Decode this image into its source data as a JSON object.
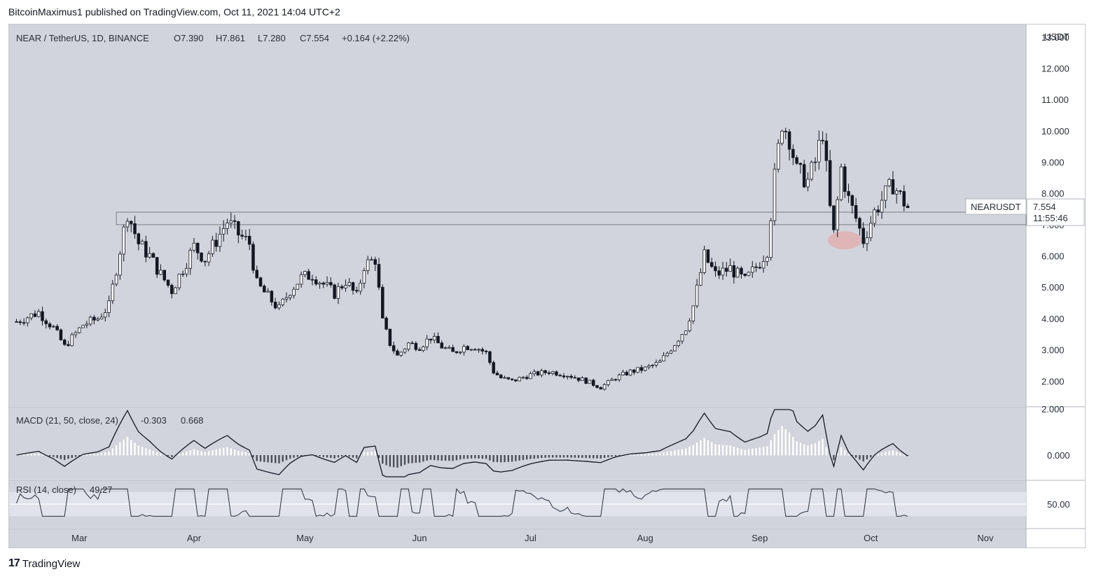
{
  "caption": "BitcoinMaximus1 published on TradingView.com, Oct 11, 2021 14:04 UTC+2",
  "brand": {
    "logo_text": "17",
    "name": "TradingView"
  },
  "legend": {
    "symbol": "NEAR / TetherUS, 1D, BINANCE",
    "o_label": "O",
    "o_value": "7.390",
    "h_label": "H",
    "h_value": "7.861",
    "l_label": "L",
    "l_value": "7.280",
    "c_label": "C",
    "c_value": "7.554",
    "change": "+0.164 (+2.22%)"
  },
  "currency": "USDT",
  "price_tag": {
    "symbol": "NEARUSDT",
    "price": "7.554",
    "countdown": "11:55:46"
  },
  "macd_legend": {
    "label": "MACD (21, 50, close, 24)",
    "v1": "-0.303",
    "v2": "0.668"
  },
  "rsi_legend": {
    "label": "RSI (14, close)",
    "value": "49.27"
  },
  "colors": {
    "pane_bg": "#d1d4dc",
    "candle_up": "#ffffff",
    "candle_down": "#131722",
    "line": "#131722",
    "highlight": "#e8a0a0",
    "rsi_band": "#e0e3eb"
  },
  "chart_data": [
    {
      "type": "candlestick",
      "title": "NEAR / TetherUS, 1D, BINANCE",
      "y_axis_ticks": [
        "2.000",
        "3.000",
        "4.000",
        "5.000",
        "6.000",
        "7.000",
        "8.000",
        "9.000",
        "10.000",
        "11.000",
        "12.000",
        "13.000"
      ],
      "x_axis_ticks": [
        "Mar",
        "Apr",
        "May",
        "Jun",
        "Jul",
        "Aug",
        "Sep",
        "Oct",
        "Nov"
      ],
      "ylim": [
        1.2,
        13.4
      ],
      "log_scale": false,
      "horizontal_range": [
        7.0,
        7.4
      ],
      "close_path": [
        [
          "2021-02-12",
          3.9
        ],
        [
          "2021-02-18",
          4.2
        ],
        [
          "2021-02-22",
          3.7
        ],
        [
          "2021-02-25",
          3.1
        ],
        [
          "2021-03-02",
          3.8
        ],
        [
          "2021-03-06",
          4.0
        ],
        [
          "2021-03-09",
          4.4
        ],
        [
          "2021-03-11",
          5.6
        ],
        [
          "2021-03-13",
          6.8
        ],
        [
          "2021-03-14",
          7.4
        ],
        [
          "2021-03-17",
          6.4
        ],
        [
          "2021-03-20",
          6.0
        ],
        [
          "2021-03-23",
          5.4
        ],
        [
          "2021-03-26",
          4.9
        ],
        [
          "2021-03-29",
          5.6
        ],
        [
          "2021-04-01",
          6.3
        ],
        [
          "2021-04-04",
          5.9
        ],
        [
          "2021-04-07",
          6.5
        ],
        [
          "2021-04-10",
          7.1
        ],
        [
          "2021-04-13",
          6.7
        ],
        [
          "2021-04-16",
          6.4
        ],
        [
          "2021-04-18",
          5.1
        ],
        [
          "2021-04-21",
          4.7
        ],
        [
          "2021-04-24",
          4.3
        ],
        [
          "2021-04-27",
          4.9
        ],
        [
          "2021-04-30",
          5.3
        ],
        [
          "2021-05-03",
          5.4
        ],
        [
          "2021-05-06",
          5.1
        ],
        [
          "2021-05-09",
          4.8
        ],
        [
          "2021-05-12",
          5.2
        ],
        [
          "2021-05-15",
          4.7
        ],
        [
          "2021-05-17",
          5.7
        ],
        [
          "2021-05-20",
          5.9
        ],
        [
          "2021-05-22",
          3.9
        ],
        [
          "2021-05-24",
          3.2
        ],
        [
          "2021-05-26",
          2.8
        ],
        [
          "2021-05-29",
          3.2
        ],
        [
          "2021-06-01",
          3.1
        ],
        [
          "2021-06-04",
          3.4
        ],
        [
          "2021-06-07",
          3.1
        ],
        [
          "2021-06-10",
          2.9
        ],
        [
          "2021-06-13",
          3.1
        ],
        [
          "2021-06-16",
          3.1
        ],
        [
          "2021-06-19",
          2.9
        ],
        [
          "2021-06-21",
          2.3
        ],
        [
          "2021-06-23",
          2.1
        ],
        [
          "2021-06-26",
          2.0
        ],
        [
          "2021-07-01",
          2.2
        ],
        [
          "2021-07-06",
          2.3
        ],
        [
          "2021-07-11",
          2.2
        ],
        [
          "2021-07-16",
          2.0
        ],
        [
          "2021-07-20",
          1.8
        ],
        [
          "2021-07-24",
          2.1
        ],
        [
          "2021-07-28",
          2.3
        ],
        [
          "2021-08-01",
          2.4
        ],
        [
          "2021-08-05",
          2.6
        ],
        [
          "2021-08-09",
          3.2
        ],
        [
          "2021-08-12",
          3.7
        ],
        [
          "2021-08-14",
          4.4
        ],
        [
          "2021-08-17",
          6.0
        ],
        [
          "2021-08-20",
          5.4
        ],
        [
          "2021-08-24",
          5.6
        ],
        [
          "2021-08-28",
          5.2
        ],
        [
          "2021-09-01",
          5.8
        ],
        [
          "2021-09-03",
          6.2
        ],
        [
          "2021-09-05",
          8.5
        ],
        [
          "2021-09-07",
          10.3
        ],
        [
          "2021-09-09",
          9.8
        ],
        [
          "2021-09-11",
          8.7
        ],
        [
          "2021-09-14",
          8.4
        ],
        [
          "2021-09-16",
          9.0
        ],
        [
          "2021-09-18",
          10.0
        ],
        [
          "2021-09-20",
          7.5
        ],
        [
          "2021-09-21",
          6.7
        ],
        [
          "2021-09-23",
          8.8
        ],
        [
          "2021-09-25",
          7.8
        ],
        [
          "2021-09-27",
          7.2
        ],
        [
          "2021-09-29",
          6.5
        ],
        [
          "2021-10-02",
          7.4
        ],
        [
          "2021-10-04",
          7.8
        ],
        [
          "2021-10-07",
          8.3
        ],
        [
          "2021-10-09",
          7.9
        ],
        [
          "2021-10-11",
          7.55
        ]
      ],
      "macd": {
        "label": "MACD (21, 50, close, 24)",
        "values": {
          "macd": -0.303,
          "signal": 0.668
        },
        "y_axis_ticks": [
          "0.000",
          "2.000"
        ]
      },
      "rsi": {
        "label": "RSI (14, close)",
        "value": 49.27,
        "y_axis_ticks": [
          "50.00"
        ]
      }
    }
  ]
}
